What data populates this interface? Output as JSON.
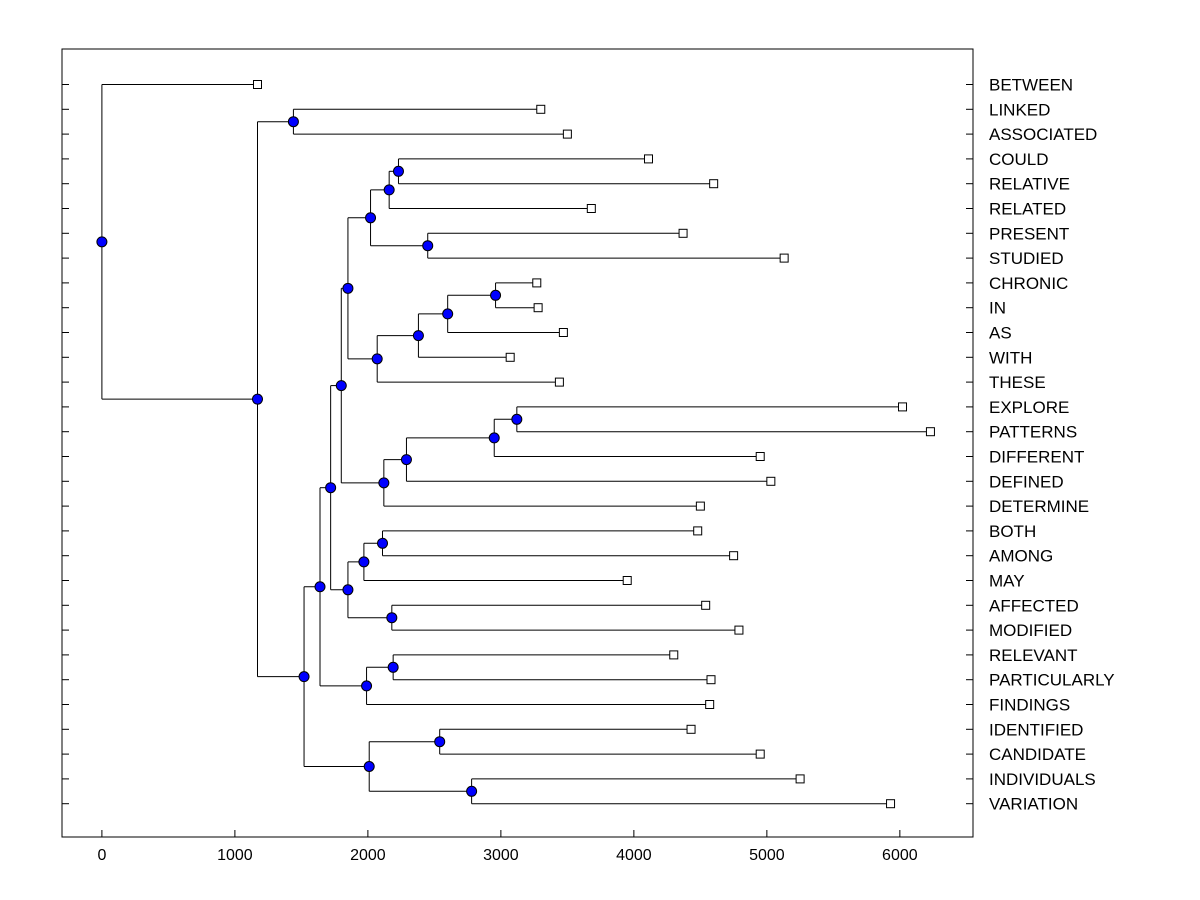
{
  "chart_data": {
    "type": "dendrogram",
    "title": "",
    "xlabel": "",
    "ylabel": "",
    "xlim": [
      -300,
      6550
    ],
    "xticks": [
      0,
      1000,
      2000,
      3000,
      4000,
      5000,
      6000
    ],
    "grid": false,
    "colors": {
      "node": "#0000ff",
      "line": "#000000",
      "leaf_fill": "#ffffff"
    },
    "leaves": [
      {
        "label": "BETWEEN",
        "x": 1170
      },
      {
        "label": "LINKED",
        "x": 3300
      },
      {
        "label": "ASSOCIATED",
        "x": 3500
      },
      {
        "label": "COULD",
        "x": 4110
      },
      {
        "label": "RELATIVE",
        "x": 4600
      },
      {
        "label": "RELATED",
        "x": 3680
      },
      {
        "label": "PRESENT",
        "x": 4370
      },
      {
        "label": "STUDIED",
        "x": 5130
      },
      {
        "label": "CHRONIC",
        "x": 3270
      },
      {
        "label": "IN",
        "x": 3280
      },
      {
        "label": "AS",
        "x": 3470
      },
      {
        "label": "WITH",
        "x": 3070
      },
      {
        "label": "THESE",
        "x": 3440
      },
      {
        "label": "EXPLORE",
        "x": 6020
      },
      {
        "label": "PATTERNS",
        "x": 6230
      },
      {
        "label": "DIFFERENT",
        "x": 4950
      },
      {
        "label": "DEFINED",
        "x": 5030
      },
      {
        "label": "DETERMINE",
        "x": 4500
      },
      {
        "label": "BOTH",
        "x": 4480
      },
      {
        "label": "AMONG",
        "x": 4750
      },
      {
        "label": "MAY",
        "x": 3950
      },
      {
        "label": "AFFECTED",
        "x": 4540
      },
      {
        "label": "MODIFIED",
        "x": 4790
      },
      {
        "label": "RELEVANT",
        "x": 4300
      },
      {
        "label": "PARTICULARLY",
        "x": 4580
      },
      {
        "label": "FINDINGS",
        "x": 4570
      },
      {
        "label": "IDENTIFIED",
        "x": 4430
      },
      {
        "label": "CANDIDATE",
        "x": 4950
      },
      {
        "label": "INDIVIDUALS",
        "x": 5250
      },
      {
        "label": "VARIATION",
        "x": 5930
      }
    ],
    "merges": [
      {
        "id": "n1",
        "x": 2960,
        "children": [
          "CHRONIC",
          "IN"
        ]
      },
      {
        "id": "n2",
        "x": 2600,
        "children": [
          "n1",
          "AS"
        ]
      },
      {
        "id": "n3",
        "x": 2380,
        "children": [
          "n2",
          "WITH"
        ]
      },
      {
        "id": "n4",
        "x": 2070,
        "children": [
          "n3",
          "THESE"
        ]
      },
      {
        "id": "n5",
        "x": 2230,
        "children": [
          "COULD",
          "RELATIVE"
        ]
      },
      {
        "id": "n6",
        "x": 2160,
        "children": [
          "n5",
          "RELATED"
        ]
      },
      {
        "id": "n7",
        "x": 2450,
        "children": [
          "PRESENT",
          "STUDIED"
        ]
      },
      {
        "id": "n8",
        "x": 2020,
        "children": [
          "n6",
          "n7"
        ]
      },
      {
        "id": "n9",
        "x": 1850,
        "children": [
          "n8",
          "n4"
        ]
      },
      {
        "id": "n10",
        "x": 3120,
        "children": [
          "EXPLORE",
          "PATTERNS"
        ]
      },
      {
        "id": "n11",
        "x": 2950,
        "children": [
          "n10",
          "DIFFERENT"
        ]
      },
      {
        "id": "n12",
        "x": 2290,
        "children": [
          "n11",
          "DEFINED"
        ]
      },
      {
        "id": "n13",
        "x": 2120,
        "children": [
          "n12",
          "DETERMINE"
        ]
      },
      {
        "id": "n14",
        "x": 1800,
        "children": [
          "n9",
          "n13"
        ]
      },
      {
        "id": "n15",
        "x": 2110,
        "children": [
          "BOTH",
          "AMONG"
        ]
      },
      {
        "id": "n16",
        "x": 1970,
        "children": [
          "n15",
          "MAY"
        ]
      },
      {
        "id": "n17",
        "x": 2180,
        "children": [
          "AFFECTED",
          "MODIFIED"
        ]
      },
      {
        "id": "n18",
        "x": 1850,
        "children": [
          "n16",
          "n17"
        ]
      },
      {
        "id": "n19",
        "x": 1720,
        "children": [
          "n14",
          "n18"
        ]
      },
      {
        "id": "n20",
        "x": 2190,
        "children": [
          "RELEVANT",
          "PARTICULARLY"
        ]
      },
      {
        "id": "n21",
        "x": 1990,
        "children": [
          "n20",
          "FINDINGS"
        ]
      },
      {
        "id": "n22",
        "x": 1640,
        "children": [
          "n19",
          "n21"
        ]
      },
      {
        "id": "n23",
        "x": 2540,
        "children": [
          "IDENTIFIED",
          "CANDIDATE"
        ]
      },
      {
        "id": "n24",
        "x": 2780,
        "children": [
          "INDIVIDUALS",
          "VARIATION"
        ]
      },
      {
        "id": "n25",
        "x": 2010,
        "children": [
          "n23",
          "n24"
        ]
      },
      {
        "id": "n26",
        "x": 1520,
        "children": [
          "n22",
          "n25"
        ]
      },
      {
        "id": "n27",
        "x": 1440,
        "children": [
          "LINKED",
          "ASSOCIATED"
        ]
      },
      {
        "id": "n28",
        "x": 1170,
        "children": [
          "n27",
          "n26"
        ]
      },
      {
        "id": "n29",
        "x": 0,
        "children": [
          "BETWEEN",
          "n28"
        ]
      }
    ]
  }
}
